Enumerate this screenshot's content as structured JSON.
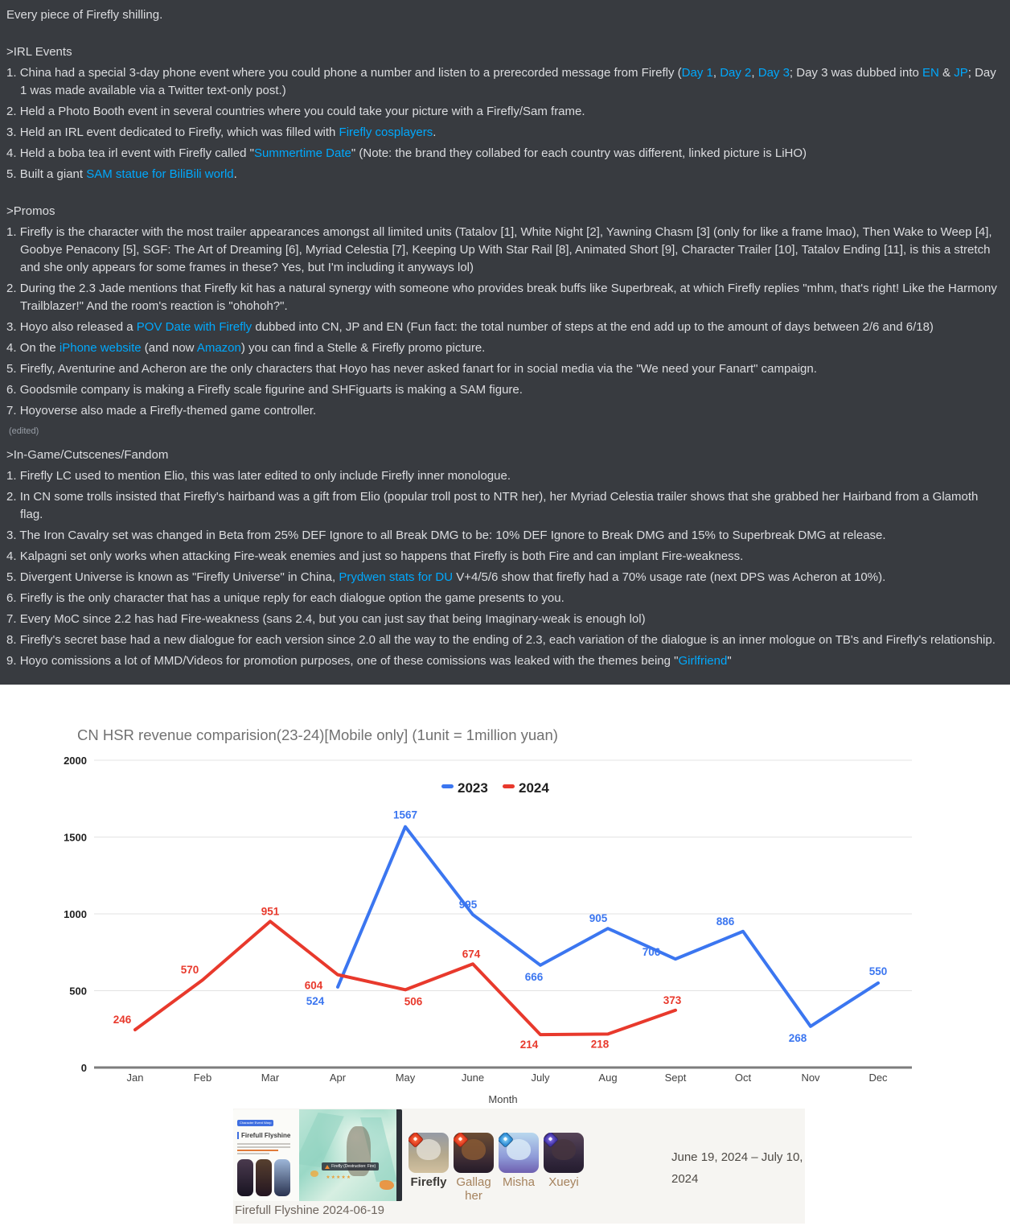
{
  "discord": {
    "intro": "Every piece of Firefly shilling.",
    "sections": [
      {
        "heading": ">IRL Events",
        "items": [
          [
            {
              "t": "China had a special 3-day phone event where you could phone a number and listen to a prerecorded message from Firefly ("
            },
            {
              "t": "Day 1",
              "l": true
            },
            {
              "t": ", "
            },
            {
              "t": "Day 2",
              "l": true
            },
            {
              "t": ", "
            },
            {
              "t": "Day 3",
              "l": true
            },
            {
              "t": "; Day 3 was dubbed into "
            },
            {
              "t": "EN",
              "l": true
            },
            {
              "t": " & "
            },
            {
              "t": "JP",
              "l": true
            },
            {
              "t": "; Day 1 was made available via a Twitter text-only post.)"
            }
          ],
          [
            {
              "t": "Held a Photo Booth event in several countries where you could take your picture with a Firefly/Sam frame."
            }
          ],
          [
            {
              "t": "Held an IRL event dedicated to Firefly, which was filled with "
            },
            {
              "t": "Firefly cosplayers",
              "l": true
            },
            {
              "t": "."
            }
          ],
          [
            {
              "t": "Held a boba tea irl event with Firefly called \""
            },
            {
              "t": "Summertime Date",
              "l": true
            },
            {
              "t": "\" (Note: the brand they collabed for each country was different, linked picture is LiHO)"
            }
          ],
          [
            {
              "t": "Built a giant "
            },
            {
              "t": "SAM statue for BiliBili world",
              "l": true
            },
            {
              "t": "."
            }
          ]
        ]
      },
      {
        "heading": ">Promos",
        "edited": "(edited)",
        "items": [
          [
            {
              "t": "Firefly is the character with the most trailer appearances amongst all limited units (Tatalov [1], White Night [2], Yawning Chasm [3] (only for like a frame lmao), Then Wake to Weep [4], Goobye Penacony [5], SGF: The Art of Dreaming [6], Myriad Celestia [7], Keeping Up With Star Rail [8], Animated Short [9], Character Trailer [10], Tatalov Ending [11], is this a stretch and she only appears for some frames in these? Yes, but I'm including it anyways lol)"
            }
          ],
          [
            {
              "t": "During the 2.3 Jade mentions that Firefly kit has a natural synergy with someone who provides break buffs like Superbreak, at which Firefly replies \"mhm, that's right! Like the Harmony Trailblazer!\" And the room's reaction is \"ohohoh?\"."
            }
          ],
          [
            {
              "t": "Hoyo also released a "
            },
            {
              "t": "POV Date with Firefly",
              "l": true
            },
            {
              "t": " dubbed into CN, JP and EN (Fun fact: the total number of steps at the end add up to the amount of days between 2/6 and 6/18)"
            }
          ],
          [
            {
              "t": "On the "
            },
            {
              "t": "iPhone website",
              "l": true
            },
            {
              "t": " (and now "
            },
            {
              "t": "Amazon",
              "l": true
            },
            {
              "t": ") you can find a Stelle & Firefly promo picture."
            }
          ],
          [
            {
              "t": "Firefly, Aventurine and Acheron are the only characters that Hoyo has never asked fanart for in social media via the \"We need your Fanart\" campaign."
            }
          ],
          [
            {
              "t": "Goodsmile company is making a Firefly scale figurine and SHFiguarts is making a SAM figure."
            }
          ],
          [
            {
              "t": "Hoyoverse also made a Firefly-themed game controller."
            }
          ]
        ]
      },
      {
        "heading": ">In-Game/Cutscenes/Fandom",
        "items": [
          [
            {
              "t": "Firefly LC used to mention Elio, this was later edited to only include Firefly inner monologue."
            }
          ],
          [
            {
              "t": "In CN some trolls insisted that Firefly's hairband was a gift from Elio (popular troll post to NTR her), her Myriad Celestia trailer shows that she grabbed her Hairband from a Glamoth flag."
            }
          ],
          [
            {
              "t": "The Iron Cavalry set was changed in Beta from 25% DEF Ignore to all Break DMG to be: 10% DEF Ignore to Break DMG and 15% to Superbreak DMG at release."
            }
          ],
          [
            {
              "t": "Kalpagni set only works when attacking Fire-weak enemies and just so happens that Firefly is both Fire and can implant Fire-weakness."
            }
          ],
          [
            {
              "t": "Divergent Universe is known as \"Firefly Universe\" in China, "
            },
            {
              "t": "Prydwen stats for DU",
              "l": true
            },
            {
              "t": " V+4/5/6 show that firefly had a 70% usage rate (next DPS was Acheron at 10%)."
            }
          ],
          [
            {
              "t": "Firefly is the only character that has a unique reply for each dialogue option the game presents to you."
            }
          ],
          [
            {
              "t": "Every MoC since 2.2 has had Fire-weakness (sans 2.4, but you can just say that being Imaginary-weak is enough lol)"
            }
          ],
          [
            {
              "t": "Firefly's secret base had a new dialogue for each version since 2.0 all the way to the ending of 2.3, each variation of the dialogue is an inner mologue on TB's and Firefly's relationship."
            }
          ],
          [
            {
              "t": "Hoyo comissions a lot of MMD/Videos for promotion purposes, one of these comissions was leaked with the themes being \""
            },
            {
              "t": "Girlfriend",
              "l": true
            },
            {
              "t": "\""
            }
          ]
        ]
      }
    ],
    "colors": {
      "background": "#383b40",
      "text": "#dcdde0",
      "link": "#00a8fc"
    }
  },
  "chart_data": {
    "type": "line",
    "title": "CN HSR revenue comparision(23-24)[Mobile only] (1unit = 1million yuan)",
    "xlabel": "Month",
    "categories": [
      "Jan",
      "Feb",
      "Mar",
      "Apr",
      "May",
      "June",
      "July",
      "Aug",
      "Sept",
      "Oct",
      "Nov",
      "Dec"
    ],
    "ylim": [
      0,
      2000
    ],
    "yticks": [
      0,
      500,
      1000,
      1500,
      2000
    ],
    "grid": true,
    "legend_position": "top-center",
    "series": [
      {
        "name": "2023",
        "color": "#3b76f0",
        "values": [
          null,
          null,
          null,
          524,
          1567,
          995,
          666,
          905,
          706,
          886,
          268,
          550
        ],
        "label_offsets": [
          [
            0,
            0
          ],
          [
            0,
            0
          ],
          [
            0,
            0
          ],
          [
            -28,
            22
          ],
          [
            0,
            -10
          ],
          [
            -6,
            -8
          ],
          [
            -8,
            19
          ],
          [
            -12,
            -8
          ],
          [
            -30,
            -4
          ],
          [
            -22,
            -8
          ],
          [
            -16,
            19
          ],
          [
            0,
            -10
          ]
        ]
      },
      {
        "name": "2024",
        "color": "#e8392c",
        "values": [
          246,
          570,
          951,
          604,
          506,
          674,
          214,
          218,
          373,
          null,
          null,
          null
        ],
        "label_offsets": [
          [
            -16,
            -8
          ],
          [
            -16,
            -8
          ],
          [
            0,
            -8
          ],
          [
            -30,
            18
          ],
          [
            10,
            19
          ],
          [
            -2,
            -8
          ],
          [
            -14,
            17
          ],
          [
            -10,
            17
          ],
          [
            -4,
            -8
          ],
          [
            0,
            0
          ],
          [
            0,
            0
          ],
          [
            0,
            0
          ]
        ]
      }
    ],
    "title_color": "#717171",
    "axis_text_color": "#424242",
    "tick_text_color": "#1f1f1f"
  },
  "footer": {
    "banner": {
      "tag": "Character Event Warp",
      "title": "Firefull Flyshine",
      "pill": "Firefly (Destruction: Fire)",
      "stars": "★★★★★"
    },
    "banner_caption": "Firefull Flyshine 2024-06-19",
    "characters": [
      {
        "name": "Firefly",
        "element": "fire",
        "emphasis": true
      },
      {
        "name": "Gallagher",
        "element": "fire",
        "emphasis": false
      },
      {
        "name": "Misha",
        "element": "ice",
        "emphasis": false
      },
      {
        "name": "Xueyi",
        "element": "quantum",
        "emphasis": false
      }
    ],
    "date_range": "June 19, 2024 – July 10, 2024"
  }
}
